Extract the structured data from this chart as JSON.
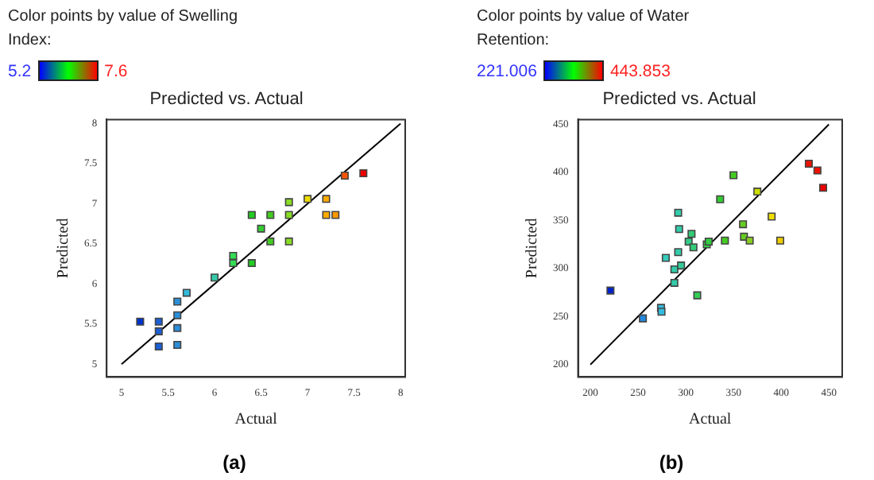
{
  "chart_data": [
    {
      "type": "scatter",
      "title": "Predicted vs. Actual",
      "xlabel": "Actual",
      "ylabel": "Predicted",
      "clabel": "Color points by value of Swelling Index:",
      "annotations": [
        "(a)",
        "5.2",
        "7.6"
      ],
      "marker": "square",
      "grid": false,
      "legend": false,
      "xlim": [
        4.84,
        8.05
      ],
      "ylim": [
        4.84,
        8.05
      ],
      "xticks": [
        5,
        5.5,
        6,
        6.5,
        7,
        7.5,
        8
      ],
      "yticks": [
        5,
        5.5,
        6,
        6.5,
        7,
        7.5,
        8
      ],
      "series": [
        {
          "x": [
            5.2,
            5.4,
            5.4,
            5.4,
            5.6,
            5.6,
            5.6,
            5.6,
            5.7,
            6.0,
            6.2,
            6.2,
            6.4,
            6.4,
            6.5,
            6.6,
            6.6,
            6.8,
            6.8,
            6.8,
            7.0,
            7.2,
            7.2,
            7.3,
            7.4,
            7.6
          ],
          "values": [
            5.53,
            5.53,
            5.41,
            5.22,
            5.78,
            5.61,
            5.45,
            5.24,
            5.89,
            6.08,
            6.35,
            6.26,
            6.26,
            6.86,
            6.69,
            6.86,
            6.53,
            7.02,
            6.86,
            6.53,
            7.06,
            7.06,
            6.86,
            6.86,
            7.35,
            7.38
          ],
          "colors": [
            "#0033cc",
            "#1a5fd6",
            "#1a5fd6",
            "#1a5fd6",
            "#2a8fd8",
            "#2a8fd8",
            "#2a8fd8",
            "#2a8fd8",
            "#33bbdd",
            "#33ccaa",
            "#33dd55",
            "#33dd55",
            "#22cc22",
            "#22cc22",
            "#33cc33",
            "#44cc22",
            "#44cc22",
            "#88dd22",
            "#88dd22",
            "#88dd22",
            "#eedd00",
            "#ffaa00",
            "#ffaa00",
            "#ff9900",
            "#ff5500",
            "#ee0000"
          ]
        },
        {
          "type": "line",
          "marker": "none",
          "color": "#000000",
          "x": [
            5,
            8
          ],
          "values": [
            5,
            8
          ]
        }
      ]
    },
    {
      "type": "scatter",
      "title": "Predicted vs. Actual",
      "xlabel": "Actual",
      "ylabel": "Predicted",
      "clabel": "Color points by value of Water Retention:",
      "annotations": [
        "(b)",
        "221.006",
        "443.853"
      ],
      "marker": "square",
      "grid": false,
      "legend": false,
      "xlim": [
        187,
        464
      ],
      "ylim": [
        187,
        455
      ],
      "xticks": [
        200,
        250,
        300,
        350,
        400,
        450
      ],
      "yticks": [
        200,
        250,
        300,
        350,
        400,
        450
      ],
      "series": [
        {
          "x": [
            221,
            255,
            274,
            274.5,
            279,
            288,
            288,
            292,
            293,
            292,
            295,
            303,
            306,
            308,
            312,
            322,
            324,
            336,
            341,
            350,
            360,
            361,
            367,
            375,
            390,
            399,
            429,
            438,
            444
          ],
          "values": [
            277,
            248,
            259,
            255,
            311,
            299,
            285,
            358,
            341,
            317,
            303,
            328,
            336,
            322,
            272,
            325,
            328,
            372,
            329,
            397,
            346,
            333,
            329,
            380,
            354,
            329,
            409,
            402,
            384
          ],
          "colors": [
            "#0022cc",
            "#2288dd",
            "#33bbdd",
            "#33bbdd",
            "#33ccbb",
            "#33ccaa",
            "#33ccaa",
            "#33ccaa",
            "#33ccaa",
            "#33ccaa",
            "#33cc99",
            "#33cc88",
            "#33cc77",
            "#33cc77",
            "#33cc55",
            "#33cc44",
            "#33cc44",
            "#33cc33",
            "#44cc22",
            "#44cc22",
            "#66cc22",
            "#66cc22",
            "#88cc22",
            "#ccdd00",
            "#eedd00",
            "#eecc00",
            "#ee1100",
            "#ee1100",
            "#ee0000"
          ]
        },
        {
          "type": "line",
          "marker": "none",
          "color": "#000000",
          "x": [
            200,
            450
          ],
          "values": [
            200,
            450
          ]
        }
      ]
    }
  ]
}
